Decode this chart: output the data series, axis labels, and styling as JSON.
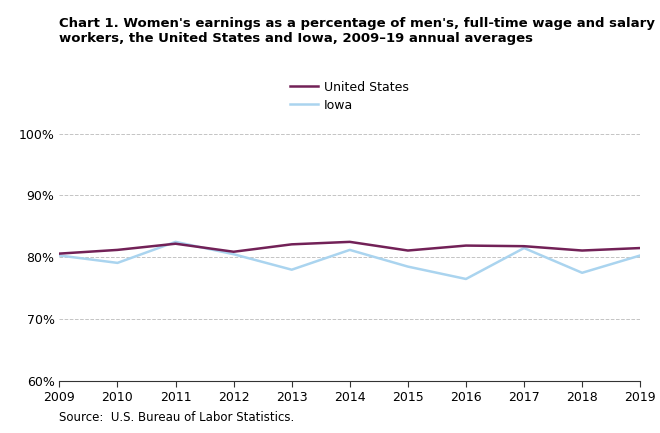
{
  "title": "Chart 1. Women's earnings as a percentage of men's, full-time wage and salary\nworkers, the United States and Iowa, 2009–19 annual averages",
  "years": [
    2009,
    2010,
    2011,
    2012,
    2013,
    2014,
    2015,
    2016,
    2017,
    2018,
    2019
  ],
  "us_values": [
    80.6,
    81.2,
    82.2,
    80.9,
    82.1,
    82.5,
    81.1,
    81.9,
    81.8,
    81.1,
    81.5
  ],
  "iowa_values": [
    80.3,
    79.1,
    82.5,
    80.5,
    78.0,
    81.2,
    78.5,
    76.5,
    81.5,
    77.5,
    80.3
  ],
  "us_color": "#722157",
  "iowa_color": "#aad4ef",
  "us_label": "United States",
  "iowa_label": "Iowa",
  "ylim": [
    60,
    102
  ],
  "yticks": [
    60,
    70,
    80,
    90,
    100
  ],
  "ytick_labels": [
    "60%",
    "70%",
    "80%",
    "90%",
    "100%"
  ],
  "source": "Source:  U.S. Bureau of Labor Statistics.",
  "line_width": 1.8,
  "background_color": "#ffffff",
  "grid_color": "#aaaaaa"
}
